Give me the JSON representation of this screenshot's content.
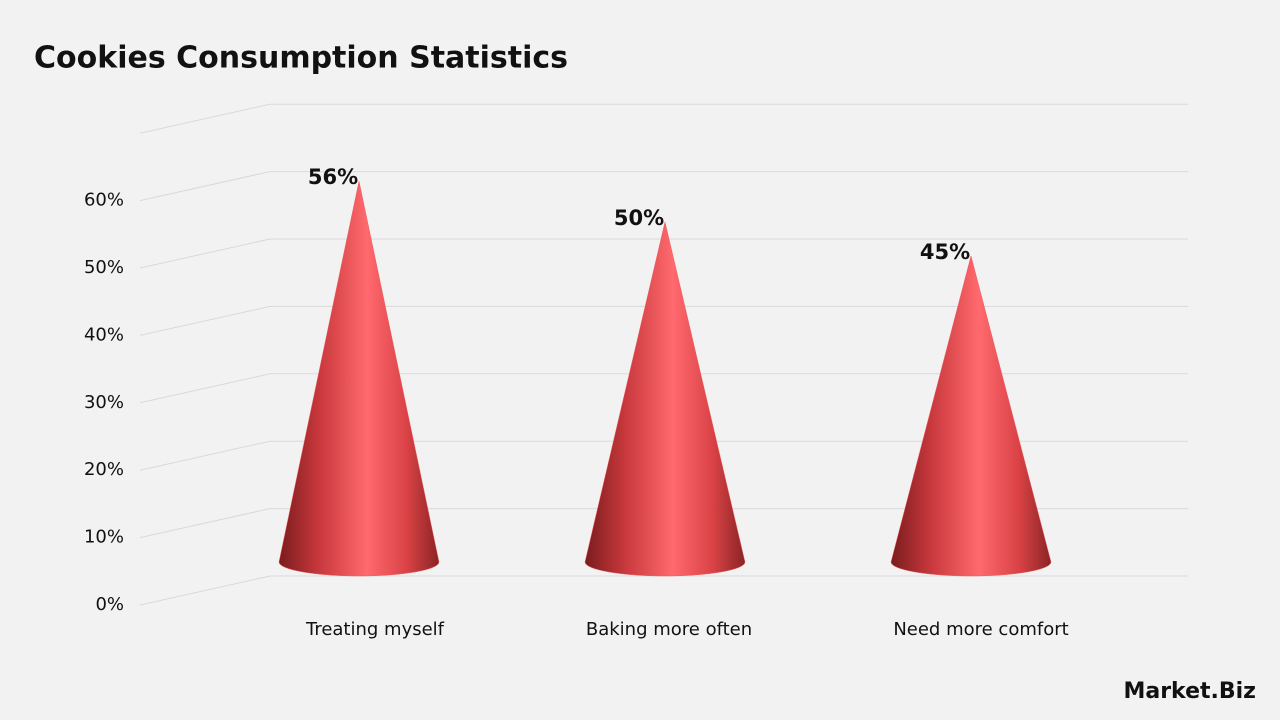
{
  "chart_data": {
    "type": "cone",
    "title": "Cookies Consumption Statistics",
    "categories": [
      "Treating myself",
      "Baking more often",
      "Need more comfort"
    ],
    "values": [
      56,
      50,
      45
    ],
    "value_labels": [
      "56%",
      "50%",
      "45%"
    ],
    "color": "#f05a5e",
    "ylim": [
      0,
      70
    ],
    "yticks": [
      {
        "value": 0,
        "label": "0%"
      },
      {
        "value": 10,
        "label": "10%"
      },
      {
        "value": 20,
        "label": "20%"
      },
      {
        "value": 30,
        "label": "30%"
      },
      {
        "value": 40,
        "label": "40%"
      },
      {
        "value": 50,
        "label": "50%"
      },
      {
        "value": 60,
        "label": "60%"
      }
    ],
    "grid": true
  },
  "brand": "Market.Biz"
}
